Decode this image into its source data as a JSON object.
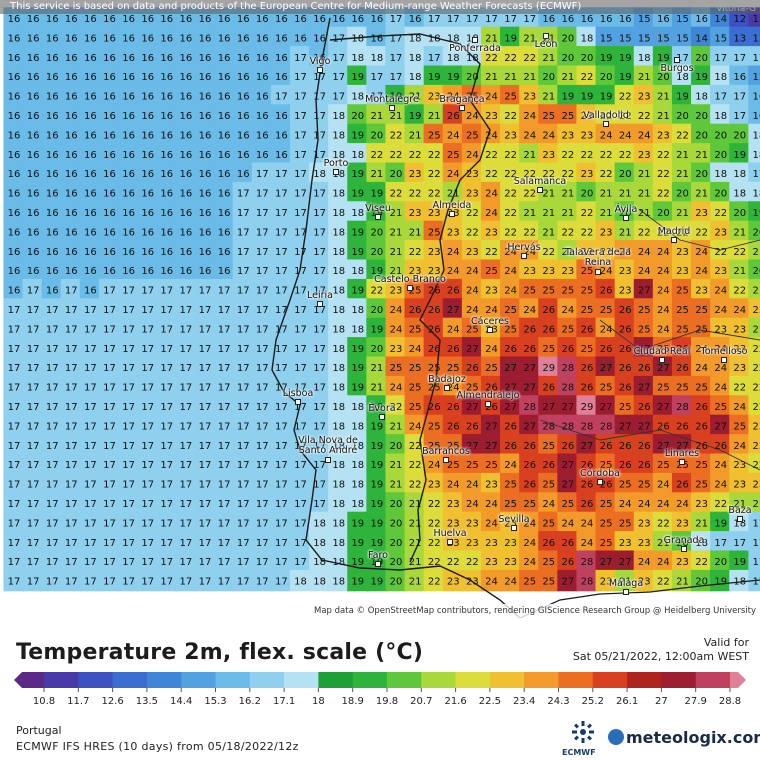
{
  "map": {
    "attribution_top": "This service is based on data and products of the European Centre for Medium-range Weather Forecasts (ECMWF)",
    "attribution_bottom": "Map data © OpenStreetMap contributors, rendering GIScience Research Group @ Heidelberg University",
    "corner_label": "Vitoria-G",
    "grid_rows": [
      "16 16 16 16 16 16 16 16 16 16 16 16 16 16 16 16 16 16 16 16 17 16 17 17 17 17 17 17 16 16 16 16 16 15 16 15 16 14 12 11 12",
      "16 16 16 16 16 16 16 16 16 16 16 16 16 16 16 16 16 17 18 16 17 18 18 18 18 21 19 21 21 20 18 15 15 15 15 15 14 15 13 13 13",
      "16 16 16 16 16 16 16 16 16 16 16 16 16 16 16 17 16 17 18 18 17 18 17 18 18 22 22 22 21 20 20 19 19 18 19 17 20 17 17 17 16",
      "16 16 16 16 16 16 16 16 16 16 16 16 16 16 16 17 17 17 19 17 17 18 19 19 20 21 21 21 20 21 22 20 19 21 20 18 19 18 16 15 16",
      "16 16 16 16 16 16 16 16 16 16 16 16 16 16 17 17 17 17 18 17 19 21 23 24 25 24 25 23 21 19 19 19 22 23 21 19 18 17 17 16 17",
      "16 16 16 16 16 16 16 16 16 16 16 16 16 16 16 17 17 18 20 21 21 19 21 26 24 23 22 24 25 25 23 22 22 22 21 20 20 18 17 16 17",
      "16 16 16 16 16 16 16 16 16 16 16 16 16 16 16 17 17 18 19 20 22 21 25 24 25 24 23 24 24 23 23 24 24 24 23 22 20 20 20 18 17",
      "16 16 16 16 16 16 16 16 16 16 16 16 16 16 16 17 17 18 18 22 22 22 22 25 24 22 22 21 23 22 22 22 22 23 22 21 21 20 19 18 17",
      "16 16 16 16 16 16 16 16 16 16 16 16 16 17 17 17 18 18 19 21 20 23 22 24 23 22 22 22 22 22 23 22 20 21 22 21 20 18 18 17 17",
      "16 16 16 16 16 16 16 16 16 16 16 16 17 17 17 17 17 18 19 19 22 22 22 21 23 24 22 22 21 21 20 21 21 21 22 20 21 20 18 18 17",
      "16 16 16 16 16 16 16 16 16 16 16 16 17 17 17 17 17 18 18 19 21 23 23 23 22 24 22 21 21 21 22 21 20 21 20 21 23 22 20 19 18",
      "16 16 16 16 16 16 16 16 16 16 16 16 17 17 17 17 17 18 19 20 21 21 25 23 22 23 22 22 21 22 22 23 21 22 22 22 22 23 21 20 19",
      "16 16 16 16 16 16 16 16 16 16 16 16 17 17 17 17 17 18 19 20 21 22 23 24 23 22 24 24 22 21 23 23 24 24 24 23 24 22 22 21 20",
      "16 16 16 16 16 16 16 16 16 16 16 16 17 17 17 17 17 18 18 19 21 23 23 24 24 25 24 23 23 23 25 24 23 24 24 23 24 23 21 20 20",
      "16 17 16 17 16 17 17 17 17 17 17 17 17 17 17 17 17 18 19 22 23 25 26 26 24 23 24 25 25 25 25 26 23 27 24 25 23 24 22 21 21",
      "17 17 17 17 17 17 17 17 17 17 17 17 17 17 17 17 17 18 18 20 24 26 26 27 24 24 25 24 26 24 25 25 26 25 24 25 25 24 24 23 22",
      "17 17 17 17 17 17 17 17 17 17 17 17 17 17 17 17 17 18 18 19 24 25 26 24 25 23 25 26 26 25 26 24 26 25 24 25 25 23 23 21 21",
      "17 17 17 17 17 17 17 17 17 17 17 17 17 17 17 17 17 18 19 20 23 24 26 26 27 24 26 26 25 26 25 26 26 27 25 26 24 24 23 22 21",
      "17 17 17 17 17 17 17 17 17 17 17 17 17 17 17 17 17 18 19 21 25 25 25 25 26 25 27 27 29 28 26 27 26 26 27 26 24 24 23 22 20",
      "17 17 17 17 17 17 17 17 17 17 17 17 17 17 17 17 17 18 19 21 24 25 25 24 25 26 27 27 26 28 26 25 26 27 25 25 25 24 22 22 21",
      "17 17 17 17 17 17 17 17 17 17 17 17 17 17 17 17 17 18 18 19 22 25 26 26 27 26 27 28 27 27 29 27 25 26 27 28 26 25 24 22 21",
      "17 17 17 17 17 17 17 17 17 17 17 17 17 17 17 17 17 18 18 19 21 24 25 26 26 27 26 27 28 28 28 28 27 27 26 26 26 27 25 23 21",
      "17 17 17 17 17 17 17 17 17 17 17 17 17 17 17 17 17 18 18 19 20 22 25 25 27 27 26 26 25 26 27 26 26 26 27 27 26 26 24 23 22",
      "17 17 17 17 17 17 17 17 17 17 17 17 17 17 17 17 17 18 18 19 21 22 24 25 25 25 24 26 26 27 26 25 26 26 25 25 25 24 23 22 21",
      "17 17 17 17 17 17 17 17 17 17 17 17 17 17 17 17 17 18 18 19 21 22 23 24 24 23 25 26 25 27 26 26 25 25 24 26 25 24 23 23 21",
      "17 17 17 17 17 17 17 17 17 17 17 17 17 17 17 17 17 18 18 19 20 21 22 23 24 24 25 25 24 25 26 25 24 24 24 24 23 22 21 21 20",
      "17 17 17 17 17 17 17 17 17 17 17 17 17 17 17 17 18 18 19 19 20 21 22 23 23 24 23 24 25 24 24 25 25 23 22 23 21 19 18 17 17",
      "17 17 17 17 17 17 17 17 17 17 17 17 17 17 17 17 18 18 19 19 20 21 22 23 23 23 23 24 26 26 24 25 23 23 21 20 18 17 17 17 17",
      "17 17 17 17 17 17 17 17 17 17 17 17 17 17 17 17 18 18 19 19 20 21 22 22 22 23 23 24 25 26 28 27 27 24 24 23 22 20 19 17 17",
      "17 17 17 17 17 17 17 17 17 17 17 17 17 17 17 18 18 18 19 19 20 21 22 23 23 24 24 25 25 27 28 23 21 23 22 21 20 19 18 17 17"
    ],
    "cities": [
      {
        "name": "Ponferrada"
      },
      {
        "name": "León"
      },
      {
        "name": "Burgos"
      },
      {
        "name": "Vigo"
      },
      {
        "name": "Montalegre"
      },
      {
        "name": "Bragança"
      },
      {
        "name": "Valladolid"
      },
      {
        "name": "Porto"
      },
      {
        "name": "Salamanca"
      },
      {
        "name": "Viseu"
      },
      {
        "name": "Almeida"
      },
      {
        "name": "Ávila"
      },
      {
        "name": "Madrid"
      },
      {
        "name": "Hervás"
      },
      {
        "name": "Talavera de la Reina"
      },
      {
        "name": "Leiria"
      },
      {
        "name": "Castelo Branco"
      },
      {
        "name": "Cáceres"
      },
      {
        "name": "Ciudad Real"
      },
      {
        "name": "Tomelloso"
      },
      {
        "name": "Badajoz"
      },
      {
        "name": "Lisboa"
      },
      {
        "name": "Almendralejo"
      },
      {
        "name": "Évora"
      },
      {
        "name": "Vila Nova de Santo André"
      },
      {
        "name": "Barrancos"
      },
      {
        "name": "Linares"
      },
      {
        "name": "Córdoba"
      },
      {
        "name": "Baza"
      },
      {
        "name": "Sevilla"
      },
      {
        "name": "Huelva"
      },
      {
        "name": "Granada"
      },
      {
        "name": "Faro"
      },
      {
        "name": "Málaga"
      }
    ]
  },
  "legend": {
    "title": "Temperature 2m, flex. scale (°C)",
    "valid_label": "Valid for",
    "valid_time": "Sat 05/21/2022, 12:00am WEST",
    "ticks": [
      "10.8",
      "11.7",
      "12.6",
      "13.5",
      "14.4",
      "15.3",
      "16.2",
      "17.1",
      "18",
      "18.9",
      "19.8",
      "20.7",
      "21.6",
      "22.5",
      "23.4",
      "24.3",
      "25.2",
      "26.1",
      "27",
      "27.9",
      "28.8"
    ],
    "colors": [
      "#5c2a86",
      "#4a3aa8",
      "#3c52c0",
      "#3a6ed0",
      "#3f86d8",
      "#52a2e2",
      "#6bbbe8",
      "#8ed0ee",
      "#b5e2f2",
      "#1ea038",
      "#2eb43a",
      "#5ec83a",
      "#a8d83a",
      "#dcdc3a",
      "#f0c030",
      "#f29a2a",
      "#ec6e22",
      "#d84020",
      "#b02420",
      "#9c1c30",
      "#c04060",
      "#e08098"
    ],
    "region": "Portugal",
    "model": "ECMWF IFS HRES (10 days) from 05/18/2022/12z",
    "ecmwf_text": "ECMWF",
    "brand": "meteologix.com"
  }
}
